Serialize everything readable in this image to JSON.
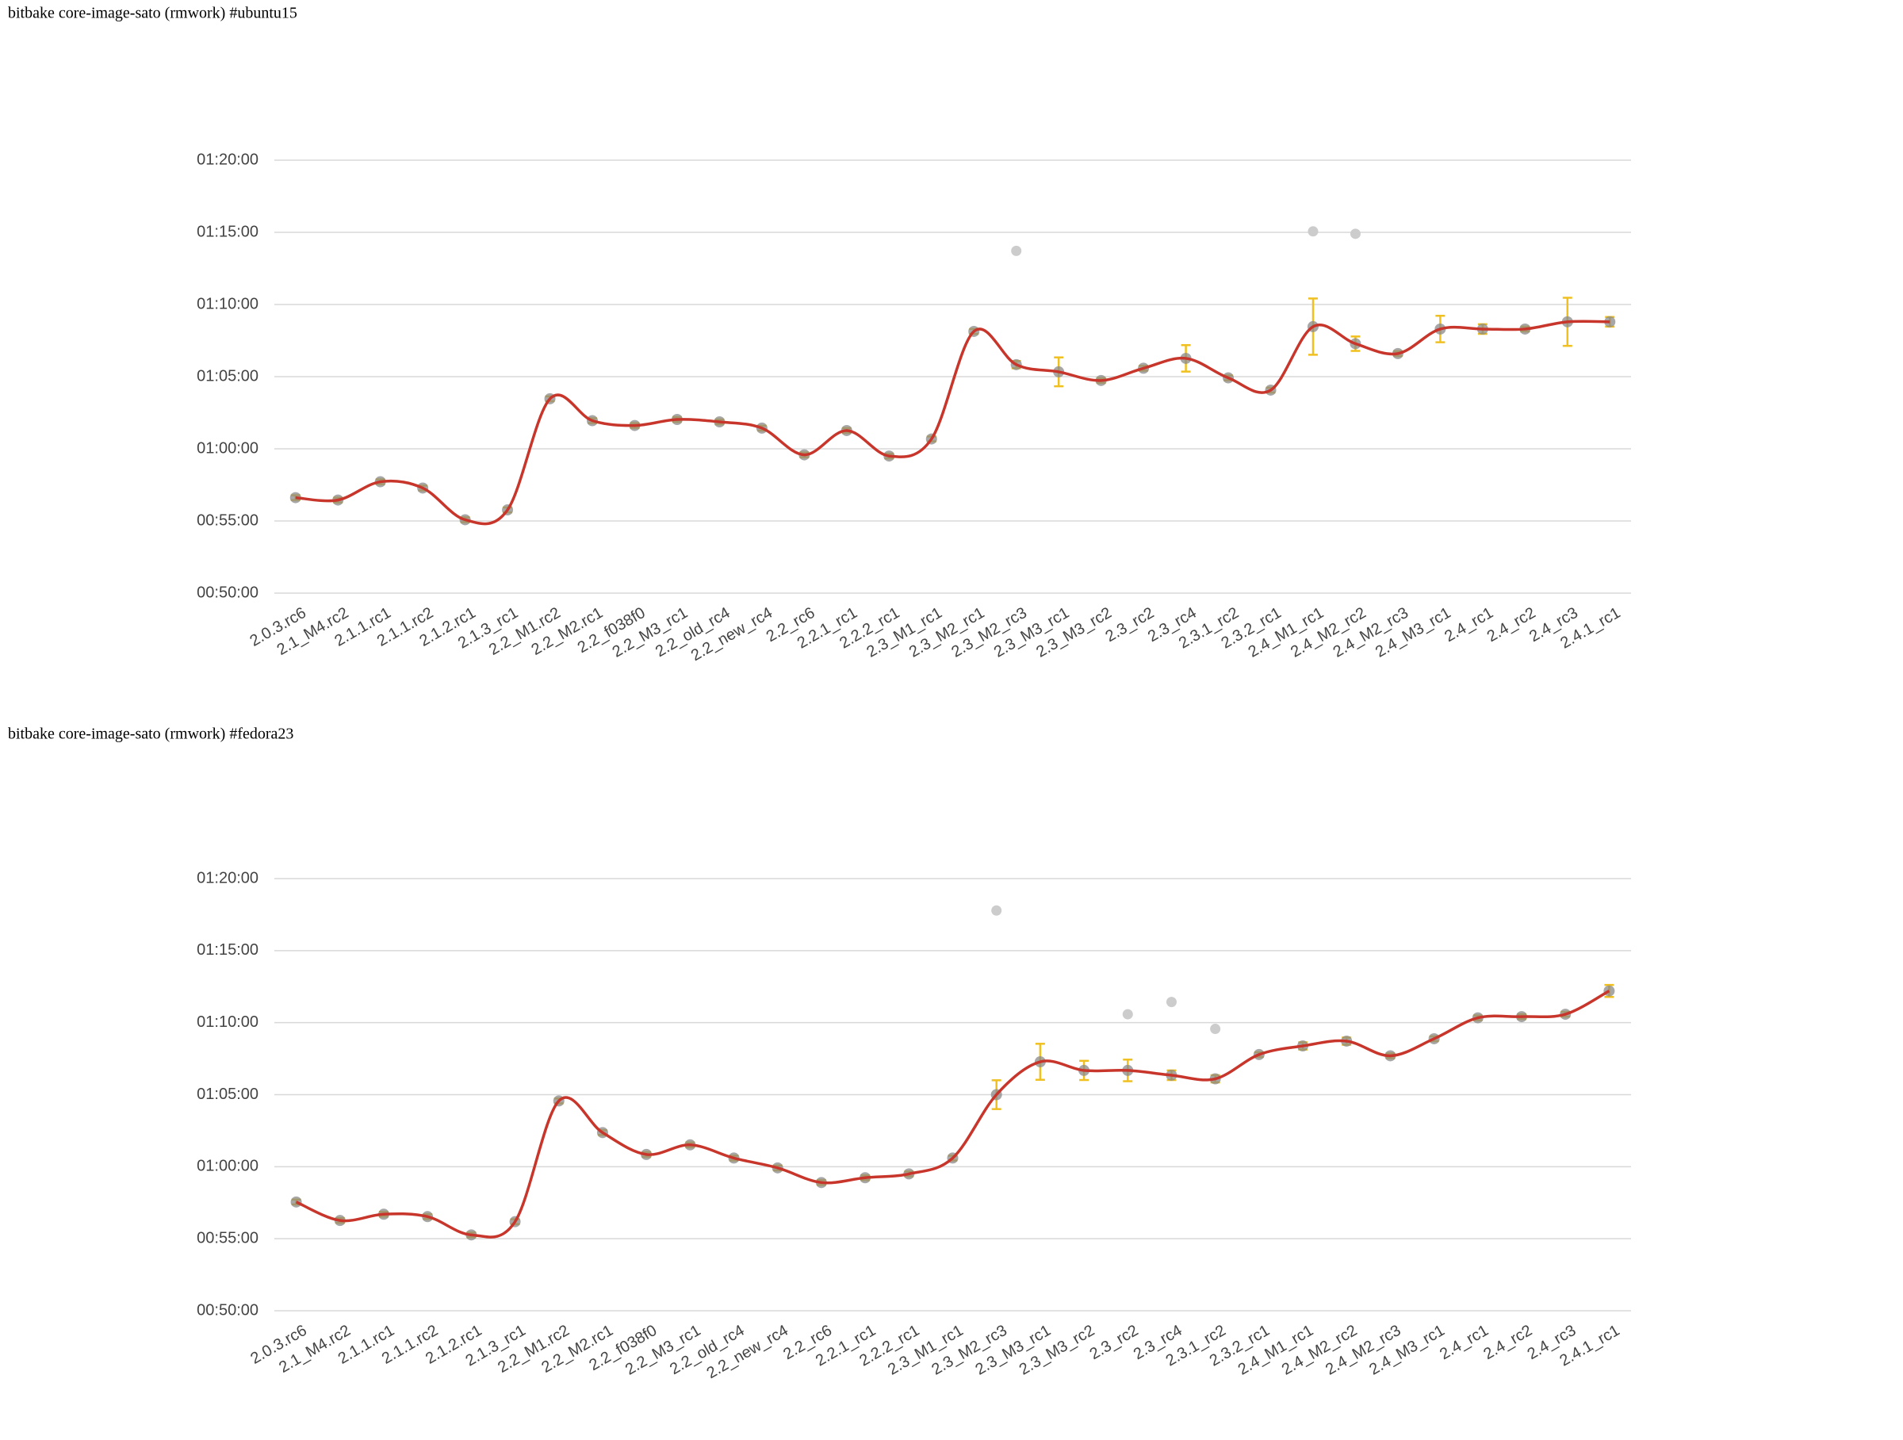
{
  "chart_data": [
    {
      "type": "line",
      "title": "bitbake core-image-sato (rmwork) #ubuntu15",
      "categories": [
        "2.0.3.rc6",
        "2.1_M4.rc2",
        "2.1.1.rc1",
        "2.1.1.rc2",
        "2.1.2.rc1",
        "2.1.3_rc1",
        "2.2_M1.rc2",
        "2.2_M2.rc1",
        "2.2_f038f0",
        "2.2_M3_rc1",
        "2.2_old_rc4",
        "2.2_new_rc4",
        "2.2_rc6",
        "2.2.1_rc1",
        "2.2.2_rc1",
        "2.3_M1_rc1",
        "2.3_M2_rc1",
        "2.3_M2_rc3",
        "2.3_M3_rc1",
        "2.3_M3_rc2",
        "2.3_rc2",
        "2.3_rc4",
        "2.3.1_rc2",
        "2.3.2_rc1",
        "2.4_M1_rc1",
        "2.4_M2_rc2",
        "2.4_M2_rc3",
        "2.4_M3_rc1",
        "2.4_rc1",
        "2.4_rc2",
        "2.4_rc3",
        "2.4.1_rc1"
      ],
      "values": [
        3397,
        3387,
        3463,
        3437,
        3305,
        3346,
        3808,
        3717,
        3697,
        3722,
        3712,
        3686,
        3575,
        3676,
        3570,
        3641,
        4088,
        3950,
        3920,
        3884,
        3935,
        3976,
        3895,
        3844,
        4108,
        4037,
        3996,
        4098,
        4098,
        4098,
        4128,
        4128
      ],
      "errors": [
        10,
        10,
        10,
        10,
        10,
        10,
        10,
        10,
        10,
        10,
        10,
        10,
        10,
        10,
        10,
        10,
        10,
        15,
        60,
        10,
        10,
        55,
        10,
        10,
        117,
        30,
        10,
        55,
        20,
        10,
        100,
        20
      ],
      "outliers": [
        null,
        null,
        null,
        null,
        null,
        null,
        null,
        null,
        null,
        null,
        null,
        null,
        null,
        null,
        null,
        null,
        null,
        4423,
        null,
        null,
        null,
        null,
        null,
        null,
        4504,
        4494,
        null,
        null,
        null,
        null,
        null,
        null
      ],
      "color": "#c8352b",
      "error_color": "#f0c020",
      "point_color": "#8a8a8a",
      "outlier_color": "#cccccc",
      "ylim": [
        3000,
        4800
      ],
      "yticks": [
        {
          "value": 3000,
          "label": "00:50:00"
        },
        {
          "value": 3300,
          "label": "00:55:00"
        },
        {
          "value": 3600,
          "label": "01:00:00"
        },
        {
          "value": 3900,
          "label": "01:05:00"
        },
        {
          "value": 4200,
          "label": "01:10:00"
        },
        {
          "value": 4500,
          "label": "01:15:00"
        },
        {
          "value": 4800,
          "label": "01:20:00"
        }
      ],
      "grid": true
    },
    {
      "type": "line",
      "title": "bitbake core-image-sato (rmwork) #fedora23",
      "categories": [
        "2.0.3.rc6",
        "2.1_M4.rc2",
        "2.1.1.rc1",
        "2.1.1.rc2",
        "2.1.2.rc1",
        "2.1.3_rc1",
        "2.2_M1.rc2",
        "2.2_M2.rc1",
        "2.2_f038f0",
        "2.2_M3_rc1",
        "2.2_old_rc4",
        "2.2_new_rc4",
        "2.2_rc6",
        "2.2.1_rc1",
        "2.2.2_rc1",
        "2.3_M1_rc1",
        "2.3_M2_rc3",
        "2.3_M3_rc1",
        "2.3_M3_rc2",
        "2.3_rc2",
        "2.3_rc4",
        "2.3.1_rc2",
        "2.3.2_rc1",
        "2.4_M1_rc1",
        "2.4_M2_rc2",
        "2.4_M2_rc3",
        "2.4_M3_rc1",
        "2.4_rc1",
        "2.4_rc2",
        "2.4_rc3",
        "2.4.1_rc1"
      ],
      "values": [
        3453,
        3376,
        3402,
        3392,
        3316,
        3371,
        3874,
        3742,
        3651,
        3691,
        3636,
        3595,
        3534,
        3554,
        3570,
        3636,
        3900,
        4037,
        4001,
        4001,
        3981,
        3966,
        4067,
        4103,
        4123,
        4062,
        4133,
        4220,
        4225,
        4235,
        4332
      ],
      "errors": [
        10,
        10,
        10,
        10,
        10,
        10,
        10,
        10,
        10,
        10,
        10,
        10,
        10,
        10,
        10,
        10,
        60,
        75,
        40,
        45,
        20,
        15,
        10,
        15,
        15,
        10,
        10,
        10,
        10,
        10,
        25
      ],
      "outliers": [
        null,
        null,
        null,
        null,
        null,
        null,
        null,
        null,
        null,
        null,
        null,
        null,
        null,
        null,
        null,
        null,
        4667,
        null,
        null,
        4235,
        4286,
        4174,
        null,
        null,
        null,
        null,
        null,
        null,
        null,
        null,
        null
      ],
      "color": "#c8352b",
      "error_color": "#f0c020",
      "point_color": "#8a8a8a",
      "outlier_color": "#cccccc",
      "ylim": [
        3000,
        4800
      ],
      "yticks": [
        {
          "value": 3000,
          "label": "00:50:00"
        },
        {
          "value": 3300,
          "label": "00:55:00"
        },
        {
          "value": 3600,
          "label": "01:00:00"
        },
        {
          "value": 3900,
          "label": "01:05:00"
        },
        {
          "value": 4200,
          "label": "01:10:00"
        },
        {
          "value": 4500,
          "label": "01:15:00"
        },
        {
          "value": 4800,
          "label": "01:20:00"
        }
      ],
      "grid": true
    }
  ]
}
